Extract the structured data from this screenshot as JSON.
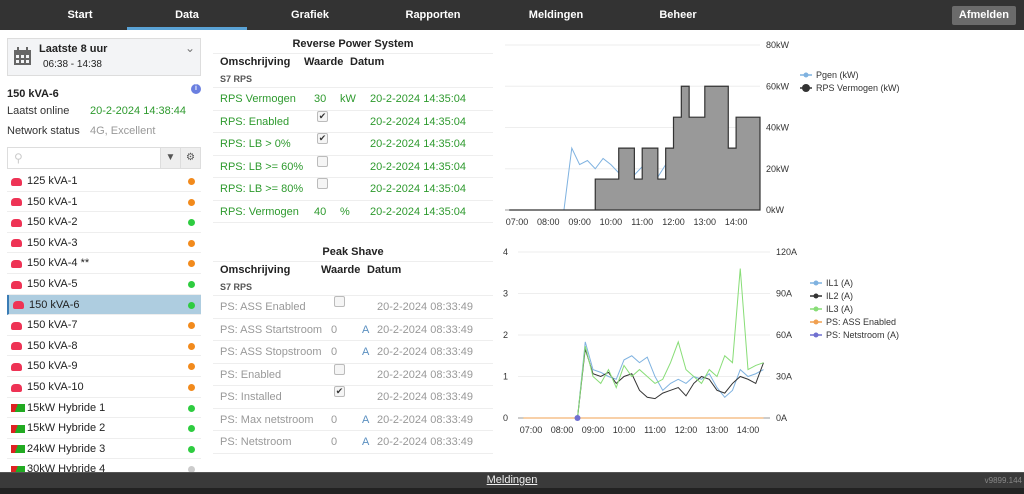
{
  "nav": {
    "tabs": [
      "Start",
      "Data",
      "Grafiek",
      "Rapporten",
      "Meldingen",
      "Beheer"
    ],
    "active": "Data",
    "logout": "Afmelden"
  },
  "period": {
    "title": "Laatste 8 uur",
    "range": "06:38 - 14:38",
    "icon": "calendar-icon"
  },
  "device": {
    "name": "150 kVA-6",
    "last_online_label": "Laatst online",
    "last_online": "20-2-2024 14:38:44",
    "network_label": "Network status",
    "network": "4G, Excellent"
  },
  "search": {
    "placeholder": ""
  },
  "colors": {
    "orange": "#f28a1c",
    "green": "#2ecc40",
    "grey": "#cccccc",
    "selected": "#aecde0",
    "ok_text": "#2e9a2e"
  },
  "devices": [
    {
      "name": "125 kVA-1",
      "type": "car",
      "status": "orange"
    },
    {
      "name": "150 kVA-1",
      "type": "car",
      "status": "orange"
    },
    {
      "name": "150 kVA-2",
      "type": "car",
      "status": "green"
    },
    {
      "name": "150 kVA-3",
      "type": "car",
      "status": "orange"
    },
    {
      "name": "150 kVA-4 **",
      "type": "car",
      "status": "orange"
    },
    {
      "name": "150 kVA-5",
      "type": "car",
      "status": "green"
    },
    {
      "name": "150 kVA-6",
      "type": "car",
      "status": "green",
      "selected": true
    },
    {
      "name": "150 kVA-7",
      "type": "car",
      "status": "orange"
    },
    {
      "name": "150 kVA-8",
      "type": "car",
      "status": "orange"
    },
    {
      "name": "150 kVA-9",
      "type": "car",
      "status": "orange"
    },
    {
      "name": "150 kVA-10",
      "type": "car",
      "status": "orange"
    },
    {
      "name": "15kW Hybride 1",
      "type": "hybrid",
      "status": "green"
    },
    {
      "name": "15kW Hybride 2",
      "type": "hybrid",
      "status": "green"
    },
    {
      "name": "24kW Hybride 3",
      "type": "hybrid",
      "status": "green"
    },
    {
      "name": "30kW Hybride 4",
      "type": "hybrid",
      "status": "grey"
    }
  ],
  "rps": {
    "title": "Reverse Power System",
    "headers": [
      "Omschrijving",
      "Waarde",
      "Datum"
    ],
    "group": "S7 RPS",
    "rows": [
      {
        "desc": "RPS Vermogen",
        "value": "30",
        "unit": "kW",
        "date": "20-2-2024 14:35:04"
      },
      {
        "desc": "RPS: Enabled",
        "checkbox": true,
        "checked": true,
        "date": "20-2-2024 14:35:04"
      },
      {
        "desc": "RPS: LB > 0%",
        "checkbox": true,
        "checked": true,
        "date": "20-2-2024 14:35:04"
      },
      {
        "desc": "RPS: LB >= 60%",
        "checkbox": true,
        "checked": false,
        "date": "20-2-2024 14:35:04"
      },
      {
        "desc": "RPS: LB >= 80%",
        "checkbox": true,
        "checked": false,
        "date": "20-2-2024 14:35:04"
      },
      {
        "desc": "RPS: Vermogen",
        "value": "40",
        "unit": "%",
        "date": "20-2-2024 14:35:04"
      }
    ]
  },
  "ps": {
    "title": "Peak Shave",
    "headers": [
      "Omschrijving",
      "Waarde",
      "Datum"
    ],
    "group": "S7 RPS",
    "rows": [
      {
        "desc": "PS: ASS Enabled",
        "checkbox": true,
        "checked": false,
        "date": "20-2-2024 08:33:49"
      },
      {
        "desc": "PS: ASS Startstroom",
        "value": "0",
        "unit": "A",
        "date": "20-2-2024 08:33:49"
      },
      {
        "desc": "PS: ASS Stopstroom",
        "value": "0",
        "unit": "A",
        "date": "20-2-2024 08:33:49"
      },
      {
        "desc": "PS: Enabled",
        "checkbox": true,
        "checked": false,
        "date": "20-2-2024 08:33:49"
      },
      {
        "desc": "PS: Installed",
        "checkbox": true,
        "checked": true,
        "date": "20-2-2024 08:33:49"
      },
      {
        "desc": "PS: Max netstroom",
        "value": "0",
        "unit": "A",
        "date": "20-2-2024 08:33:49"
      },
      {
        "desc": "PS: Netstroom",
        "value": "0",
        "unit": "A",
        "date": "20-2-2024 08:33:49"
      }
    ]
  },
  "chart_data": [
    {
      "type": "line",
      "x_ticks": [
        "07:00",
        "08:00",
        "09:00",
        "10:00",
        "11:00",
        "12:00",
        "13:00",
        "14:00"
      ],
      "y_ticks_right": [
        "0kW",
        "20kW",
        "40kW",
        "60kW",
        "80kW"
      ],
      "ylim": [
        0,
        80
      ],
      "grid": true,
      "legend": "right",
      "x": [
        "06:45",
        "07:00",
        "07:15",
        "07:30",
        "07:45",
        "08:00",
        "08:15",
        "08:30",
        "08:45",
        "09:00",
        "09:15",
        "09:30",
        "09:45",
        "10:00",
        "10:15",
        "10:30",
        "10:45",
        "11:00",
        "11:15",
        "11:30",
        "11:45",
        "12:00",
        "12:15",
        "12:30",
        "12:45",
        "13:00",
        "13:15",
        "13:30",
        "13:45",
        "14:00",
        "14:15",
        "14:30"
      ],
      "series": [
        {
          "name": "Pgen (kW)",
          "color": "#7fb2e0",
          "values": [
            0,
            0,
            0,
            0,
            0,
            0,
            0,
            0,
            30,
            22,
            24,
            20,
            25,
            22,
            18,
            20,
            17,
            21,
            19,
            16,
            22,
            20,
            18,
            21,
            19,
            17,
            23,
            20,
            18,
            21,
            19,
            24
          ]
        },
        {
          "name": "RPS Vermogen (kW)",
          "color": "#333333",
          "area": "#999999",
          "values": [
            0,
            0,
            0,
            0,
            0,
            0,
            0,
            0,
            0,
            0,
            0,
            15,
            15,
            15,
            30,
            30,
            15,
            30,
            30,
            15,
            30,
            45,
            60,
            45,
            45,
            60,
            60,
            60,
            30,
            45,
            45,
            45
          ]
        }
      ]
    },
    {
      "type": "line",
      "x_ticks": [
        "07:00",
        "08:00",
        "09:00",
        "10:00",
        "11:00",
        "12:00",
        "13:00",
        "14:00"
      ],
      "y_ticks_left": [
        "0",
        "1",
        "2",
        "3",
        "4"
      ],
      "y_ticks_right": [
        "0A",
        "30A",
        "60A",
        "90A",
        "120A"
      ],
      "ylim_left": [
        0,
        4
      ],
      "ylim_right": [
        0,
        120
      ],
      "grid": true,
      "legend": "right",
      "x": [
        "06:45",
        "07:00",
        "07:15",
        "07:30",
        "07:45",
        "08:00",
        "08:15",
        "08:30",
        "08:45",
        "09:00",
        "09:15",
        "09:30",
        "09:45",
        "10:00",
        "10:15",
        "10:30",
        "10:45",
        "11:00",
        "11:15",
        "11:30",
        "11:45",
        "12:00",
        "12:15",
        "12:30",
        "12:45",
        "13:00",
        "13:15",
        "13:30",
        "13:45",
        "14:00",
        "14:15",
        "14:30"
      ],
      "series": [
        {
          "name": "IL1 (A)",
          "color": "#7fb2e0",
          "axis": "right",
          "values": [
            0,
            0,
            0,
            0,
            0,
            0,
            0,
            0,
            55,
            35,
            33,
            30,
            28,
            42,
            45,
            40,
            44,
            30,
            20,
            25,
            28,
            25,
            30,
            28,
            32,
            22,
            15,
            20,
            35,
            30,
            32,
            35
          ]
        },
        {
          "name": "IL2 (A)",
          "color": "#333333",
          "axis": "right",
          "values": [
            0,
            0,
            0,
            0,
            0,
            0,
            0,
            0,
            50,
            32,
            30,
            33,
            25,
            30,
            32,
            20,
            15,
            14,
            18,
            20,
            22,
            16,
            25,
            30,
            28,
            20,
            18,
            25,
            30,
            28,
            25,
            40
          ]
        },
        {
          "name": "IL3 (A)",
          "color": "#88dd77",
          "axis": "right",
          "values": [
            0,
            0,
            0,
            0,
            0,
            0,
            0,
            0,
            52,
            30,
            25,
            35,
            22,
            38,
            30,
            35,
            30,
            25,
            28,
            40,
            55,
            35,
            30,
            25,
            35,
            30,
            45,
            40,
            108,
            35,
            38,
            40
          ]
        },
        {
          "name": "PS: ASS Enabled",
          "color": "#f0a050",
          "axis": "left",
          "values": [
            0,
            0,
            0,
            0,
            0,
            0,
            0,
            0,
            0,
            0,
            0,
            0,
            0,
            0,
            0,
            0,
            0,
            0,
            0,
            0,
            0,
            0,
            0,
            0,
            0,
            0,
            0,
            0,
            0,
            0,
            0,
            0
          ]
        },
        {
          "name": "PS: Netstroom (A)",
          "color": "#7070d0",
          "axis": "left",
          "values": [
            null,
            null,
            null,
            null,
            null,
            null,
            null,
            0,
            null,
            null,
            null,
            null,
            null,
            null,
            null,
            null,
            null,
            null,
            null,
            null,
            null,
            null,
            null,
            null,
            null,
            null,
            null,
            null,
            null,
            null,
            null,
            null
          ]
        }
      ]
    }
  ],
  "footer": {
    "link": "Meldingen",
    "version": "v9899.144"
  }
}
